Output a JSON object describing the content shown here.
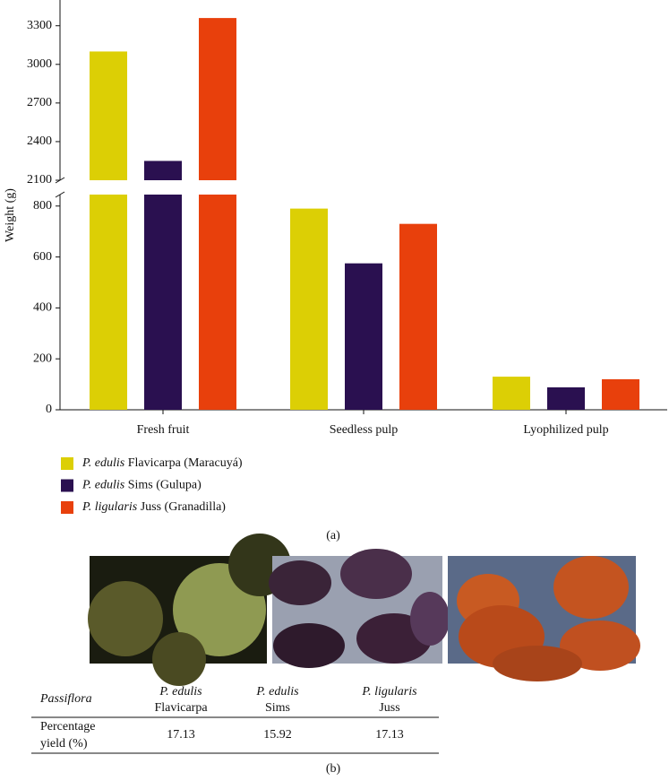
{
  "chart_data": {
    "type": "bar",
    "y_label": "Weight (g)",
    "categories": [
      "Fresh fruit",
      "Seedless pulp",
      "Lyophilized pulp"
    ],
    "series": [
      {
        "name": "P. edulis Flavicarpa (Maracuyá)",
        "color": "#dccf05",
        "values": [
          3100,
          790,
          130
        ]
      },
      {
        "name": "P. edulis Sims (Gulupa)",
        "color": "#2a1050",
        "values": [
          2250,
          575,
          88
        ]
      },
      {
        "name": "P. ligularis Juss (Granadilla)",
        "color": "#e8400c",
        "values": [
          3360,
          730,
          120
        ]
      }
    ],
    "ylim_segments": [
      [
        0,
        845
      ],
      [
        2100,
        3500
      ]
    ],
    "yticks": [
      0,
      200,
      400,
      600,
      800,
      2100,
      2400,
      2700,
      3000,
      3300
    ],
    "caption": "(a)"
  },
  "table": {
    "header": {
      "label": "Passiflora",
      "columns": [
        {
          "species": "P. edulis",
          "variety": "Flavicarpa"
        },
        {
          "species": "P. edulis",
          "variety": "Sims"
        },
        {
          "species": "P. ligularis",
          "variety": "Juss"
        }
      ]
    },
    "row": {
      "label": "Percentage yield (%)",
      "values": [
        17.13,
        15.92,
        17.13
      ]
    },
    "caption": "(b)"
  }
}
